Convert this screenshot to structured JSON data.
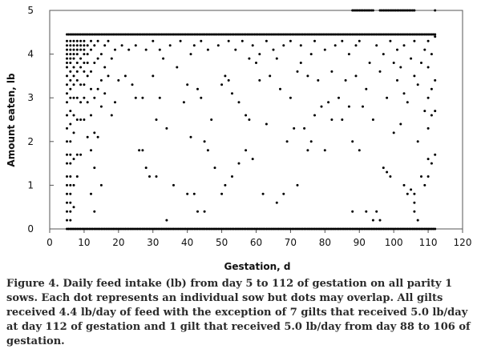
{
  "chart_data": {
    "type": "scatter",
    "title": "",
    "xlabel": "Gestation, d",
    "ylabel": "Amount eaten, lb",
    "xlim": [
      0,
      120
    ],
    "ylim": [
      0,
      5
    ],
    "xticks": [
      "0",
      "10",
      "20",
      "30",
      "40",
      "50",
      "60",
      "70",
      "80",
      "90",
      "100",
      "110",
      "120"
    ],
    "yticks": [
      "0",
      "1",
      "2",
      "3",
      "4",
      "5"
    ],
    "grid": false,
    "legend": "none",
    "point_color": "#000000",
    "series": [
      {
        "points": [
          [
            5,
            0.2
          ],
          [
            5,
            0.4
          ],
          [
            5,
            0.6
          ],
          [
            5,
            0.8
          ],
          [
            5,
            1.0
          ],
          [
            5,
            1.2
          ],
          [
            5,
            1.5
          ],
          [
            5,
            1.7
          ],
          [
            5,
            2.0
          ],
          [
            5,
            2.3
          ],
          [
            5,
            2.6
          ],
          [
            5,
            2.9
          ],
          [
            5,
            3.1
          ],
          [
            5,
            3.3
          ],
          [
            5,
            3.5
          ],
          [
            5,
            3.7
          ],
          [
            5,
            3.8
          ],
          [
            5,
            3.9
          ],
          [
            5,
            4.0
          ],
          [
            5,
            4.1
          ],
          [
            5,
            4.2
          ],
          [
            5,
            4.3
          ],
          [
            6,
            0.2
          ],
          [
            6,
            0.4
          ],
          [
            6,
            0.6
          ],
          [
            6,
            0.8
          ],
          [
            6,
            1.0
          ],
          [
            6,
            1.2
          ],
          [
            6,
            1.5
          ],
          [
            6,
            1.7
          ],
          [
            6,
            2.0
          ],
          [
            6,
            2.4
          ],
          [
            6,
            2.7
          ],
          [
            6,
            3.0
          ],
          [
            6,
            3.2
          ],
          [
            6,
            3.4
          ],
          [
            6,
            3.6
          ],
          [
            6,
            3.8
          ],
          [
            6,
            3.9
          ],
          [
            6,
            4.0
          ],
          [
            6,
            4.1
          ],
          [
            6,
            4.2
          ],
          [
            6,
            4.3
          ],
          [
            7,
            0.5
          ],
          [
            7,
            1.0
          ],
          [
            7,
            1.6
          ],
          [
            7,
            2.2
          ],
          [
            7,
            2.6
          ],
          [
            7,
            3.0
          ],
          [
            7,
            3.3
          ],
          [
            7,
            3.5
          ],
          [
            7,
            3.7
          ],
          [
            7,
            3.9
          ],
          [
            7,
            4.0
          ],
          [
            7,
            4.1
          ],
          [
            7,
            4.2
          ],
          [
            7,
            4.3
          ],
          [
            8,
            1.2
          ],
          [
            8,
            1.7
          ],
          [
            8,
            2.5
          ],
          [
            8,
            3.0
          ],
          [
            8,
            3.4
          ],
          [
            8,
            3.6
          ],
          [
            8,
            3.8
          ],
          [
            8,
            4.0
          ],
          [
            8,
            4.1
          ],
          [
            8,
            4.2
          ],
          [
            8,
            4.3
          ],
          [
            9,
            1.7
          ],
          [
            9,
            2.5
          ],
          [
            9,
            2.9
          ],
          [
            9,
            3.3
          ],
          [
            9,
            3.7
          ],
          [
            9,
            3.9
          ],
          [
            9,
            4.1
          ],
          [
            9,
            4.2
          ],
          [
            9,
            4.3
          ],
          [
            10,
            2.5
          ],
          [
            10,
            3.0
          ],
          [
            10,
            3.3
          ],
          [
            10,
            3.6
          ],
          [
            10,
            3.8
          ],
          [
            10,
            4.0
          ],
          [
            10,
            4.1
          ],
          [
            10,
            4.2
          ],
          [
            10,
            4.3
          ],
          [
            11,
            2.1
          ],
          [
            11,
            2.9
          ],
          [
            11,
            3.5
          ],
          [
            11,
            3.8
          ],
          [
            11,
            4.0
          ],
          [
            11,
            4.2
          ],
          [
            12,
            0.8
          ],
          [
            12,
            1.8
          ],
          [
            12,
            2.6
          ],
          [
            12,
            3.2
          ],
          [
            12,
            3.6
          ],
          [
            12,
            4.1
          ],
          [
            12,
            4.3
          ],
          [
            13,
            0.4
          ],
          [
            13,
            1.4
          ],
          [
            13,
            2.2
          ],
          [
            13,
            3.0
          ],
          [
            13,
            3.8
          ],
          [
            13,
            4.2
          ],
          [
            14,
            2.1
          ],
          [
            14,
            3.2
          ],
          [
            14,
            3.9
          ],
          [
            14,
            4.3
          ],
          [
            15,
            1.0
          ],
          [
            15,
            2.8
          ],
          [
            15,
            3.4
          ],
          [
            15,
            4.0
          ],
          [
            16,
            3.1
          ],
          [
            16,
            3.7
          ],
          [
            16,
            4.2
          ],
          [
            17,
            3.5
          ],
          [
            17,
            4.3
          ],
          [
            18,
            2.6
          ],
          [
            18,
            3.9
          ],
          [
            19,
            2.9
          ],
          [
            19,
            4.1
          ],
          [
            20,
            3.4
          ],
          [
            21,
            4.2
          ],
          [
            22,
            3.5
          ],
          [
            23,
            4.1
          ],
          [
            24,
            3.3
          ],
          [
            25,
            3.0
          ],
          [
            25,
            4.2
          ],
          [
            26,
            1.8
          ],
          [
            27,
            1.8
          ],
          [
            27,
            3.0
          ],
          [
            28,
            1.4
          ],
          [
            28,
            4.1
          ],
          [
            29,
            1.2
          ],
          [
            30,
            3.5
          ],
          [
            30,
            4.3
          ],
          [
            31,
            1.2
          ],
          [
            31,
            2.5
          ],
          [
            32,
            3.0
          ],
          [
            32,
            4.1
          ],
          [
            33,
            3.9
          ],
          [
            34,
            0.2
          ],
          [
            34,
            2.3
          ],
          [
            35,
            4.2
          ],
          [
            36,
            1.0
          ],
          [
            37,
            3.7
          ],
          [
            38,
            4.3
          ],
          [
            39,
            2.9
          ],
          [
            40,
            0.8
          ],
          [
            40,
            3.3
          ],
          [
            41,
            2.1
          ],
          [
            41,
            4.0
          ],
          [
            42,
            0.8
          ],
          [
            42,
            4.2
          ],
          [
            43,
            0.4
          ],
          [
            43,
            3.2
          ],
          [
            44,
            3.0
          ],
          [
            44,
            4.3
          ],
          [
            45,
            0.4
          ],
          [
            45,
            2.0
          ],
          [
            46,
            1.8
          ],
          [
            46,
            4.1
          ],
          [
            47,
            2.5
          ],
          [
            48,
            1.4
          ],
          [
            49,
            4.2
          ],
          [
            50,
            0.8
          ],
          [
            50,
            3.3
          ],
          [
            51,
            1.0
          ],
          [
            51,
            3.5
          ],
          [
            52,
            3.4
          ],
          [
            52,
            4.3
          ],
          [
            53,
            1.2
          ],
          [
            53,
            3.1
          ],
          [
            54,
            4.1
          ],
          [
            55,
            1.5
          ],
          [
            55,
            2.9
          ],
          [
            56,
            4.3
          ],
          [
            57,
            1.8
          ],
          [
            57,
            2.6
          ],
          [
            58,
            2.5
          ],
          [
            58,
            3.9
          ],
          [
            59,
            1.6
          ],
          [
            59,
            4.2
          ],
          [
            60,
            3.8
          ],
          [
            61,
            3.4
          ],
          [
            61,
            4.0
          ],
          [
            62,
            0.8
          ],
          [
            63,
            2.4
          ],
          [
            63,
            4.3
          ],
          [
            64,
            3.5
          ],
          [
            65,
            4.1
          ],
          [
            66,
            0.6
          ],
          [
            66,
            3.9
          ],
          [
            67,
            3.2
          ],
          [
            68,
            0.8
          ],
          [
            68,
            4.2
          ],
          [
            69,
            2.0
          ],
          [
            70,
            3.0
          ],
          [
            70,
            4.3
          ],
          [
            71,
            2.3
          ],
          [
            72,
            1.0
          ],
          [
            72,
            3.6
          ],
          [
            73,
            3.8
          ],
          [
            73,
            4.2
          ],
          [
            74,
            2.3
          ],
          [
            75,
            1.8
          ],
          [
            75,
            3.5
          ],
          [
            76,
            2.0
          ],
          [
            76,
            4.0
          ],
          [
            77,
            2.6
          ],
          [
            77,
            4.3
          ],
          [
            78,
            3.4
          ],
          [
            79,
            2.8
          ],
          [
            80,
            1.8
          ],
          [
            80,
            4.1
          ],
          [
            81,
            2.9
          ],
          [
            82,
            2.5
          ],
          [
            82,
            3.6
          ],
          [
            83,
            4.2
          ],
          [
            84,
            3.0
          ],
          [
            85,
            2.5
          ],
          [
            85,
            4.3
          ],
          [
            86,
            3.4
          ],
          [
            87,
            2.8
          ],
          [
            87,
            4.0
          ],
          [
            88,
            0.4
          ],
          [
            88,
            2.0
          ],
          [
            89,
            3.5
          ],
          [
            89,
            4.2
          ],
          [
            90,
            1.8
          ],
          [
            90,
            4.3
          ],
          [
            91,
            2.8
          ],
          [
            92,
            0.4
          ],
          [
            92,
            3.2
          ],
          [
            93,
            3.8
          ],
          [
            94,
            0.2
          ],
          [
            94,
            2.5
          ],
          [
            95,
            0.4
          ],
          [
            95,
            4.2
          ],
          [
            96,
            0.2
          ],
          [
            96,
            3.6
          ],
          [
            97,
            1.4
          ],
          [
            97,
            4.0
          ],
          [
            98,
            1.3
          ],
          [
            98,
            3.0
          ],
          [
            99,
            1.2
          ],
          [
            99,
            4.3
          ],
          [
            100,
            2.2
          ],
          [
            100,
            3.8
          ],
          [
            101,
            3.4
          ],
          [
            101,
            4.1
          ],
          [
            102,
            2.4
          ],
          [
            102,
            3.7
          ],
          [
            103,
            1.0
          ],
          [
            103,
            3.1
          ],
          [
            103,
            4.2
          ],
          [
            104,
            0.8
          ],
          [
            104,
            2.9
          ],
          [
            105,
            0.9
          ],
          [
            105,
            3.9
          ],
          [
            106,
            0.4
          ],
          [
            106,
            0.6
          ],
          [
            106,
            0.8
          ],
          [
            106,
            3.5
          ],
          [
            106,
            4.3
          ],
          [
            107,
            0.2
          ],
          [
            107,
            2.0
          ],
          [
            107,
            3.3
          ],
          [
            108,
            1.2
          ],
          [
            108,
            3.8
          ],
          [
            109,
            1.0
          ],
          [
            109,
            2.7
          ],
          [
            109,
            4.1
          ],
          [
            110,
            1.2
          ],
          [
            110,
            1.6
          ],
          [
            110,
            2.3
          ],
          [
            110,
            3.0
          ],
          [
            110,
            3.7
          ],
          [
            110,
            4.3
          ],
          [
            111,
            1.5
          ],
          [
            111,
            2.6
          ],
          [
            111,
            3.2
          ],
          [
            111,
            4.0
          ],
          [
            112,
            1.7
          ],
          [
            112,
            2.7
          ],
          [
            112,
            3.4
          ],
          [
            112,
            4.4
          ],
          [
            112,
            5.0
          ]
        ]
      }
    ],
    "ceiling_row": {
      "y": 4.45,
      "x_from": 5,
      "x_to": 112
    },
    "floor_row": {
      "y": 0.0,
      "x_from": 5,
      "x_to": 112
    },
    "upper_rows": [
      {
        "y": 5.0,
        "x_from": 88,
        "x_to": 94
      },
      {
        "y": 5.0,
        "x_from": 96,
        "x_to": 106
      }
    ]
  },
  "caption": "Figure 4. Daily feed intake (lb) from day 5 to 112 of gestation on all parity 1 sows. Each dot represents an individual sow but dots may overlap. All gilts received 4.4 lb/day of feed with the exception of 7 gilts that received 5.0 lb/day at day 112 of gestation and 1 gilt that received 5.0 lb/day from day 88 to 106 of gestation."
}
